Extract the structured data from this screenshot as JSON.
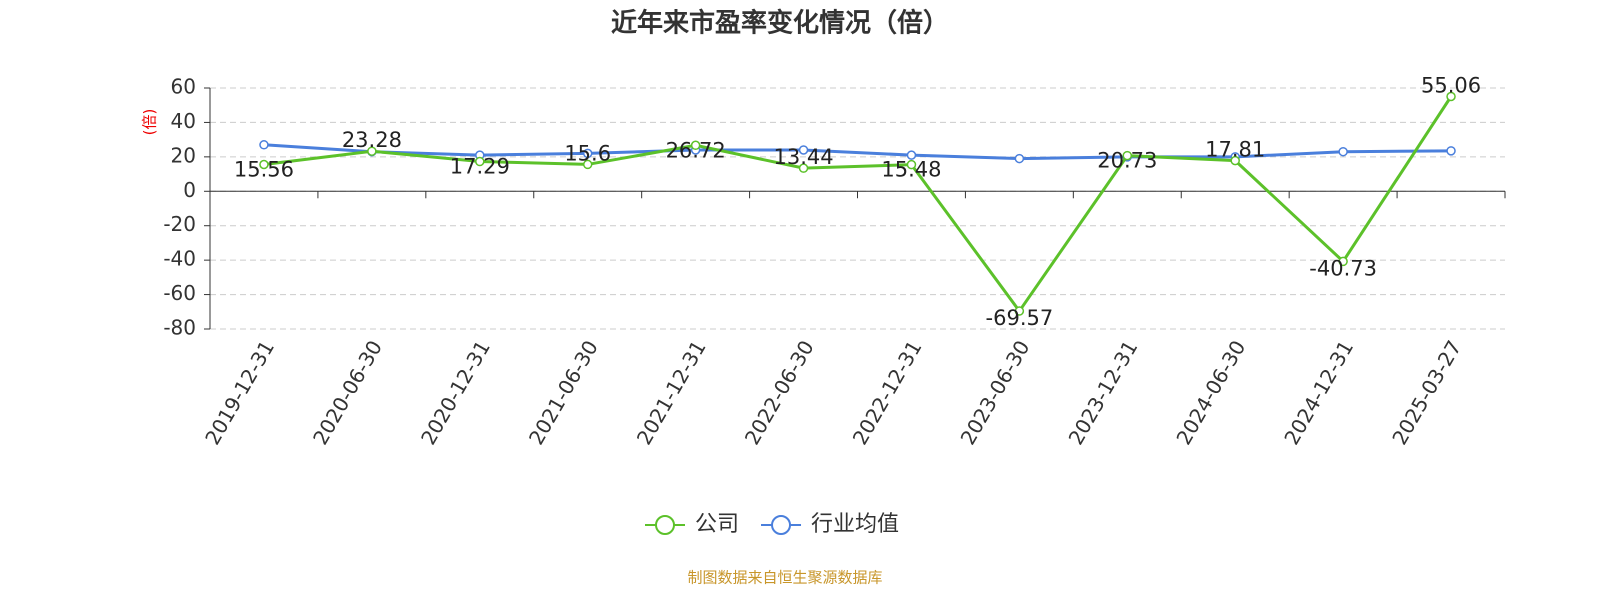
{
  "chart_data": {
    "type": "line",
    "title": "近年来市盈率变化情况（倍）",
    "y_label": "(倍)",
    "categories": [
      "2019-12-31",
      "2020-06-30",
      "2020-12-31",
      "2021-06-30",
      "2021-12-31",
      "2022-06-30",
      "2022-12-31",
      "2023-06-30",
      "2023-12-31",
      "2024-06-30",
      "2024-12-31",
      "2025-03-27"
    ],
    "series": [
      {
        "name": "公司",
        "color": "#5cc12a",
        "show_labels": true,
        "values": [
          15.56,
          23.28,
          17.29,
          15.6,
          26.72,
          13.44,
          15.48,
          -69.57,
          20.73,
          17.81,
          -40.73,
          55.06
        ]
      },
      {
        "name": "行业均值",
        "color": "#4a7fdc",
        "show_labels": false,
        "values": [
          27,
          23,
          21,
          22,
          24,
          24,
          21,
          19,
          20,
          20,
          23,
          23.5
        ]
      }
    ],
    "ylim": [
      -80,
      60
    ],
    "yticks": [
      -80,
      -60,
      -40,
      -20,
      0,
      20,
      40,
      60
    ],
    "grid": true,
    "source": "制图数据来自恒生聚源数据库"
  }
}
